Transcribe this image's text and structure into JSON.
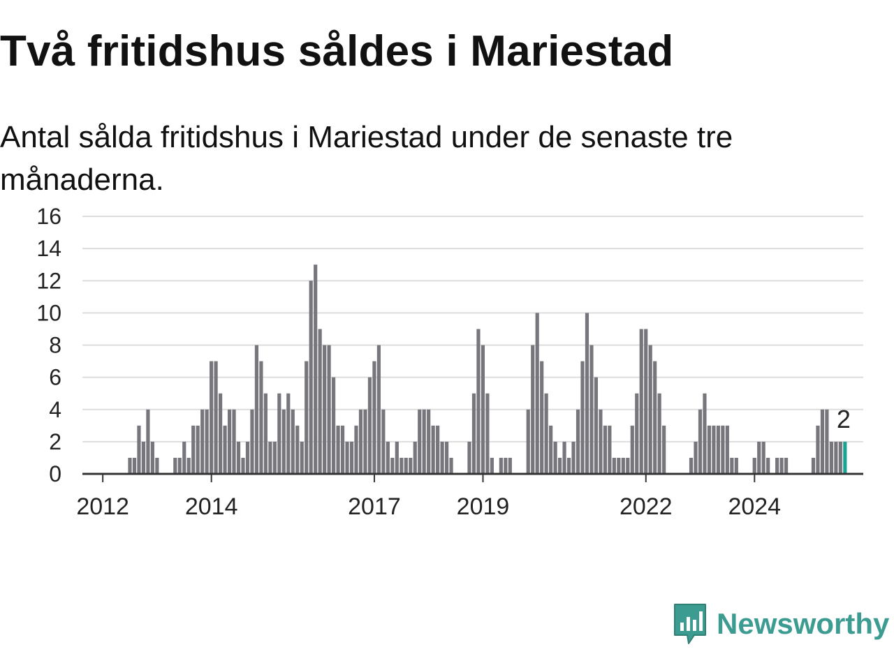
{
  "title": "Två fritidshus såldes i Mariestad",
  "subtitle": "Antal sålda fritidshus i Mariestad under de senaste tre månaderna.",
  "logo": {
    "text": "Newsworthy",
    "icon": "newsworthy-bar-chart-icon",
    "color": "#3d9c91"
  },
  "colors": {
    "bar": "#76767c",
    "highlight": "#1aa391",
    "grid": "#dddddd",
    "axis": "#333333"
  },
  "chart_data": {
    "type": "bar",
    "title": "",
    "xlabel": "",
    "ylabel": "",
    "ylim": [
      0,
      16
    ],
    "yticks": [
      "0",
      "2",
      "4",
      "6",
      "8",
      "10",
      "12",
      "14",
      "16"
    ],
    "grid": true,
    "x_tick_labels": [
      "2012",
      "2014",
      "2017",
      "2019",
      "2022",
      "2024"
    ],
    "x_range": [
      "2011-09",
      "2025-05"
    ],
    "start_month": "2011-09",
    "values": [
      0,
      0,
      0,
      0,
      0,
      0,
      0,
      0,
      0,
      0,
      1,
      1,
      3,
      2,
      4,
      2,
      1,
      0,
      0,
      0,
      1,
      1,
      2,
      1,
      3,
      3,
      4,
      4,
      7,
      7,
      5,
      3,
      4,
      4,
      2,
      1,
      2,
      4,
      8,
      7,
      5,
      2,
      2,
      5,
      4,
      5,
      4,
      3,
      2,
      7,
      12,
      13,
      9,
      8,
      8,
      6,
      3,
      3,
      2,
      2,
      3,
      4,
      4,
      6,
      7,
      8,
      4,
      2,
      1,
      2,
      1,
      1,
      1,
      2,
      4,
      4,
      4,
      3,
      3,
      2,
      2,
      1,
      0,
      0,
      0,
      2,
      5,
      9,
      8,
      5,
      1,
      0,
      1,
      1,
      1,
      0,
      0,
      0,
      4,
      8,
      10,
      7,
      5,
      3,
      2,
      1,
      2,
      1,
      2,
      4,
      7,
      10,
      8,
      6,
      4,
      3,
      3,
      1,
      1,
      1,
      1,
      3,
      5,
      9,
      9,
      8,
      7,
      5,
      3,
      0,
      0,
      0,
      0,
      0,
      1,
      2,
      4,
      5,
      3,
      3,
      3,
      3,
      3,
      1,
      1,
      0,
      0,
      0,
      1,
      2,
      2,
      1,
      0,
      1,
      1,
      1,
      0,
      0,
      0,
      0,
      0,
      1,
      3,
      4,
      4,
      2,
      2,
      2,
      2
    ],
    "highlight_last": true,
    "last_value_label": "2"
  }
}
